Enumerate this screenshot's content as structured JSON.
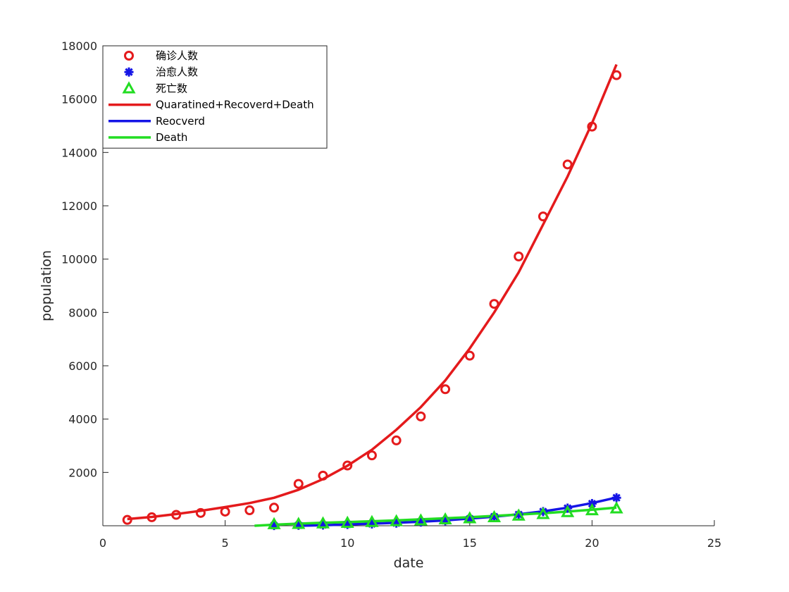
{
  "chart_data": {
    "type": "line",
    "title": "",
    "xlabel": "date",
    "ylabel": "population",
    "xlim": [
      0,
      25
    ],
    "ylim": [
      0,
      18000
    ],
    "xticks": [
      0,
      5,
      10,
      15,
      20,
      25
    ],
    "yticks": [
      2000,
      4000,
      6000,
      8000,
      10000,
      12000,
      14000,
      16000,
      18000
    ],
    "grid": false,
    "legend_position": "top-left",
    "series": [
      {
        "name": "确诊人数",
        "kind": "markers",
        "marker": "circle",
        "color": "#e41a1c",
        "x": [
          1,
          2,
          3,
          4,
          5,
          6,
          7,
          8,
          9,
          10,
          11,
          12,
          13,
          14,
          15,
          16,
          17,
          18,
          19,
          20,
          21
        ],
        "y": [
          220,
          320,
          410,
          480,
          530,
          580,
          680,
          1570,
          1880,
          2260,
          2640,
          3200,
          4100,
          5120,
          6380,
          8320,
          10100,
          11600,
          13550,
          14970,
          16900
        ]
      },
      {
        "name": "治愈人数",
        "kind": "markers",
        "marker": "asterisk",
        "color": "#1515e6",
        "x": [
          7,
          8,
          9,
          10,
          11,
          12,
          13,
          14,
          15,
          16,
          17,
          18,
          19,
          20,
          21
        ],
        "y": [
          10,
          20,
          30,
          50,
          70,
          100,
          140,
          190,
          260,
          340,
          420,
          530,
          660,
          830,
          1050
        ]
      },
      {
        "name": "死亡数",
        "kind": "markers",
        "marker": "triangle",
        "color": "#22dd22",
        "x": [
          7,
          8,
          9,
          10,
          11,
          12,
          13,
          14,
          15,
          16,
          17,
          18,
          19,
          20,
          21
        ],
        "y": [
          60,
          70,
          90,
          110,
          140,
          170,
          200,
          240,
          280,
          320,
          380,
          440,
          510,
          580,
          650
        ]
      },
      {
        "name": "Quaratined+Recoverd+Death",
        "kind": "line",
        "color": "#e41a1c",
        "x": [
          1,
          2,
          3,
          4,
          5,
          6,
          7,
          8,
          9,
          10,
          11,
          12,
          13,
          14,
          15,
          16,
          17,
          18,
          19,
          20,
          21
        ],
        "y": [
          250,
          330,
          440,
          560,
          700,
          850,
          1050,
          1350,
          1750,
          2250,
          2850,
          3600,
          4450,
          5450,
          6650,
          8000,
          9500,
          11300,
          13100,
          15100,
          17300
        ]
      },
      {
        "name": "Reocverd",
        "kind": "line",
        "color": "#1515e6",
        "x": [
          8,
          9,
          10,
          11,
          12,
          13,
          14,
          15,
          16,
          17,
          18,
          19,
          20,
          21
        ],
        "y": [
          0,
          20,
          50,
          80,
          110,
          150,
          200,
          270,
          340,
          430,
          540,
          680,
          850,
          1060
        ]
      },
      {
        "name": "Death",
        "kind": "line",
        "color": "#22dd22",
        "x": [
          6.2,
          7,
          8,
          9,
          10,
          11,
          12,
          13,
          14,
          15,
          16,
          17,
          18,
          19,
          20,
          21
        ],
        "y": [
          0,
          40,
          80,
          110,
          140,
          170,
          200,
          240,
          280,
          320,
          370,
          420,
          470,
          530,
          600,
          680
        ]
      }
    ]
  }
}
